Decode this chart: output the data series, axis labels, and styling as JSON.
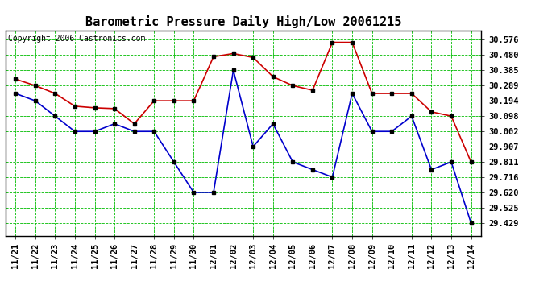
{
  "title": "Barometric Pressure Daily High/Low 20061215",
  "copyright": "Copyright 2006 Castronics.com",
  "background_color": "#ffffff",
  "plot_bg_color": "#ffffff",
  "grid_color": "#00bb00",
  "labels": [
    "11/21",
    "11/22",
    "11/23",
    "11/24",
    "11/25",
    "11/26",
    "11/27",
    "11/28",
    "11/29",
    "11/30",
    "12/01",
    "12/02",
    "12/03",
    "12/04",
    "12/05",
    "12/06",
    "12/07",
    "12/08",
    "12/09",
    "12/10",
    "12/11",
    "12/12",
    "12/13",
    "12/14"
  ],
  "high_values": [
    30.33,
    30.289,
    30.24,
    30.16,
    30.15,
    30.145,
    30.05,
    30.194,
    30.194,
    30.194,
    30.47,
    30.49,
    30.465,
    30.345,
    30.289,
    30.26,
    30.56,
    30.56,
    30.24,
    30.24,
    30.24,
    30.125,
    30.098,
    29.811
  ],
  "low_values": [
    30.24,
    30.194,
    30.098,
    30.002,
    30.002,
    30.05,
    30.002,
    30.002,
    29.811,
    29.62,
    29.62,
    30.385,
    29.907,
    30.05,
    29.811,
    29.763,
    29.716,
    30.24,
    30.002,
    30.002,
    30.098,
    29.763,
    29.811,
    29.429
  ],
  "high_color": "#cc0000",
  "low_color": "#0000cc",
  "marker_color": "#000000",
  "yticks": [
    29.429,
    29.525,
    29.62,
    29.716,
    29.811,
    29.907,
    30.002,
    30.098,
    30.194,
    30.289,
    30.385,
    30.48,
    30.576
  ],
  "ylim": [
    29.35,
    30.636
  ],
  "title_fontsize": 11,
  "tick_fontsize": 7.5,
  "copyright_fontsize": 7
}
